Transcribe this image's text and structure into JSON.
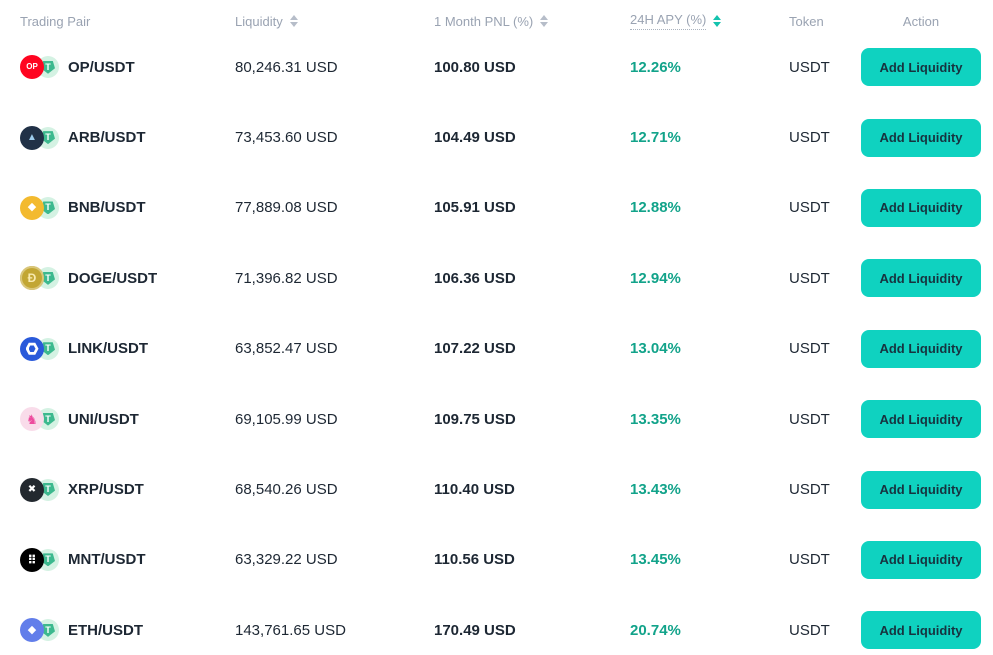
{
  "colors": {
    "accent": "#0fd2c0",
    "apy-green": "#12a38a",
    "header-gray": "#9aa3b2",
    "text-dark": "#1d2733",
    "btn-text": "#17333f"
  },
  "table": {
    "columns": [
      {
        "key": "pair",
        "label": "Trading Pair",
        "sortable": false,
        "sort_active": false,
        "dotted": false
      },
      {
        "key": "liquidity",
        "label": "Liquidity",
        "sortable": true,
        "sort_active": false,
        "dotted": false
      },
      {
        "key": "pnl",
        "label": "1 Month PNL (%)",
        "sortable": true,
        "sort_active": false,
        "dotted": false
      },
      {
        "key": "apy",
        "label": "24H APY (%)",
        "sortable": true,
        "sort_active": true,
        "dotted": true
      },
      {
        "key": "token",
        "label": "Token",
        "sortable": false,
        "sort_active": false,
        "dotted": false
      },
      {
        "key": "action",
        "label": "Action",
        "sortable": false,
        "sort_active": false,
        "dotted": false
      }
    ],
    "rows": [
      {
        "base": "OP",
        "pair": "OP/USDT",
        "liquidity": "80,246.31 USD",
        "pnl": "100.80 USD",
        "apy": "12.26%",
        "token": "USDT",
        "action": "Add Liquidity"
      },
      {
        "base": "ARB",
        "pair": "ARB/USDT",
        "liquidity": "73,453.60 USD",
        "pnl": "104.49 USD",
        "apy": "12.71%",
        "token": "USDT",
        "action": "Add Liquidity"
      },
      {
        "base": "BNB",
        "pair": "BNB/USDT",
        "liquidity": "77,889.08 USD",
        "pnl": "105.91 USD",
        "apy": "12.88%",
        "token": "USDT",
        "action": "Add Liquidity"
      },
      {
        "base": "DOGE",
        "pair": "DOGE/USDT",
        "liquidity": "71,396.82 USD",
        "pnl": "106.36 USD",
        "apy": "12.94%",
        "token": "USDT",
        "action": "Add Liquidity"
      },
      {
        "base": "LINK",
        "pair": "LINK/USDT",
        "liquidity": "63,852.47 USD",
        "pnl": "107.22 USD",
        "apy": "13.04%",
        "token": "USDT",
        "action": "Add Liquidity"
      },
      {
        "base": "UNI",
        "pair": "UNI/USDT",
        "liquidity": "69,105.99 USD",
        "pnl": "109.75 USD",
        "apy": "13.35%",
        "token": "USDT",
        "action": "Add Liquidity"
      },
      {
        "base": "XRP",
        "pair": "XRP/USDT",
        "liquidity": "68,540.26 USD",
        "pnl": "110.40 USD",
        "apy": "13.43%",
        "token": "USDT",
        "action": "Add Liquidity"
      },
      {
        "base": "MNT",
        "pair": "MNT/USDT",
        "liquidity": "63,329.22 USD",
        "pnl": "110.56 USD",
        "apy": "13.45%",
        "token": "USDT",
        "action": "Add Liquidity"
      },
      {
        "base": "ETH",
        "pair": "ETH/USDT",
        "liquidity": "143,761.65 USD",
        "pnl": "170.49 USD",
        "apy": "20.74%",
        "token": "USDT",
        "action": "Add Liquidity"
      }
    ]
  },
  "icons": {
    "tether": {
      "name": "tether-icon",
      "glyph": "T",
      "bg": "#d4f2e3",
      "badge": "#3cb98e",
      "fg": "#ffffff"
    },
    "OP": {
      "name": "op-coin-icon",
      "glyph": "OP",
      "bg": "#ff0420",
      "fg": "#ffffff",
      "size": "8px"
    },
    "ARB": {
      "name": "arbitrum-coin-icon",
      "glyph": "▲",
      "bg": "#213147",
      "fg": "#9dcced",
      "size": "10px"
    },
    "BNB": {
      "name": "bnb-coin-icon",
      "glyph": "◆",
      "bg": "#f3ba2f",
      "fg": "#ffffff",
      "size": "11px"
    },
    "DOGE": {
      "name": "doge-coin-icon",
      "glyph": "Ð",
      "bg": "#c2a633",
      "fg": "#f8eab0",
      "size": "12px",
      "ring": "#d9c67a"
    },
    "LINK": {
      "name": "chainlink-coin-icon",
      "glyph": "",
      "bg": "#2a5ada",
      "fg": "#ffffff",
      "size": "10px",
      "shape": "hexring"
    },
    "UNI": {
      "name": "uniswap-coin-icon",
      "glyph": "♞",
      "bg": "#f9dcea",
      "fg": "#ed4b9e",
      "size": "13px"
    },
    "XRP": {
      "name": "xrp-coin-icon",
      "glyph": "✖",
      "bg": "#23292f",
      "fg": "#ffffff",
      "size": "10px"
    },
    "MNT": {
      "name": "mantle-coin-icon",
      "glyph": "⠿",
      "bg": "#000000",
      "fg": "#ffffff",
      "size": "12px"
    },
    "ETH": {
      "name": "ethereum-coin-icon",
      "glyph": "◆",
      "bg": "#627eea",
      "fg": "#ffffff",
      "size": "11px"
    }
  }
}
